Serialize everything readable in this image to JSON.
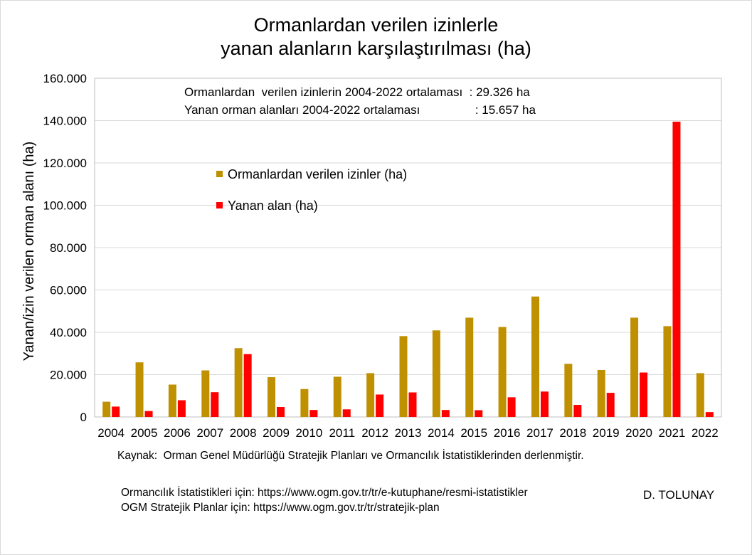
{
  "chart_data": {
    "type": "bar",
    "title_line1": "Ormanlardan verilen izinlerle",
    "title_line2": "yanan  alanların karşılaştırılması (ha)",
    "ylabel": "Yanan/izin verilen orman alanı (ha)",
    "ylim": [
      0,
      160000
    ],
    "ytick_values": [
      0,
      20000,
      40000,
      60000,
      80000,
      100000,
      120000,
      140000,
      160000
    ],
    "ytick_labels": [
      "0",
      "20.000",
      "40.000",
      "60.000",
      "80.000",
      "100.000",
      "120.000",
      "140.000",
      "160.000"
    ],
    "grid": true,
    "legend_placement": "upper-left",
    "categories": [
      "2004",
      "2005",
      "2006",
      "2007",
      "2008",
      "2009",
      "2010",
      "2011",
      "2012",
      "2013",
      "2014",
      "2015",
      "2016",
      "2017",
      "2018",
      "2019",
      "2020",
      "2021",
      "2022"
    ],
    "series": [
      {
        "name": "Ormanlardan verilen izinler (ha)",
        "color": "#bf9000",
        "values": [
          7200,
          25800,
          15300,
          22000,
          32500,
          18800,
          13200,
          19000,
          20700,
          38200,
          40900,
          46900,
          42500,
          56900,
          25100,
          22200,
          46900,
          42900,
          20700
        ]
      },
      {
        "name": "Yanan alan (ha)",
        "color": "#ff0000",
        "values": [
          4900,
          2800,
          7900,
          11700,
          29700,
          4700,
          3300,
          3600,
          10600,
          11600,
          3300,
          3200,
          9300,
          12000,
          5700,
          11400,
          21000,
          139500,
          2300
        ]
      }
    ],
    "annotations": {
      "avg_line1_label": "Ormanlardan  verilen izinlerin 2004-2022 ortalaması",
      "avg_line1_value": "  : 29.326 ha",
      "avg_line2_label": "Yanan orman alanları 2004-2022 ortalaması",
      "avg_line2_value": "  : 15.657 ha"
    }
  },
  "footer": {
    "source": "Kaynak:  Orman Genel Müdürlüğü Stratejik Planları ve Ormancılık İstatistiklerinden derlenmiştir.",
    "link1": "Ormancılık İstatistikleri için: https://www.ogm.gov.tr/tr/e-kutuphane/resmi-istatistikler",
    "link2": "OGM Stratejik Planlar için: https://www.ogm.gov.tr/tr/stratejik-plan",
    "author": "D. TOLUNAY"
  }
}
